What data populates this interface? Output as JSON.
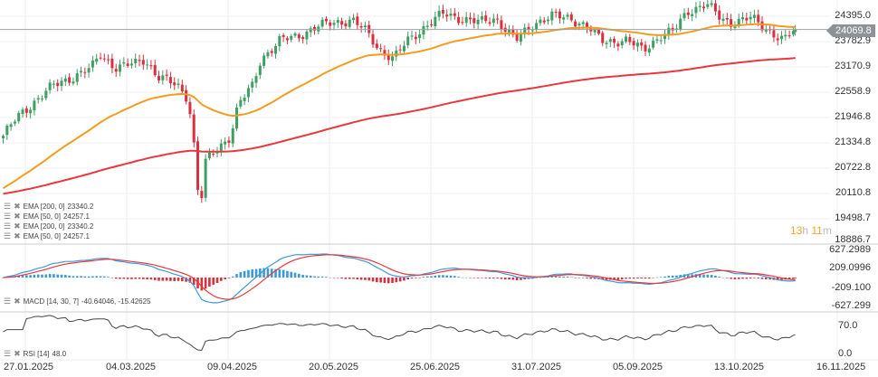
{
  "chart_data": [
    {
      "type": "candlestick",
      "pane": "price",
      "y_ticks": [
        "24395.0",
        "23782.9",
        "23170.9",
        "22558.9",
        "21946.8",
        "21334.8",
        "20722.8",
        "20110.8",
        "19498.7",
        "18886.7"
      ],
      "ylim": [
        18886.7,
        24395.0
      ],
      "current_price": "24069.8",
      "close_path": [
        [
          "2025-01-19",
          21446
        ],
        [
          "2025-01-24",
          21893
        ],
        [
          "2025-01-31",
          22340
        ],
        [
          "2025-02-06",
          22675
        ],
        [
          "2025-02-13",
          22898
        ],
        [
          "2025-02-20",
          23122
        ],
        [
          "2025-02-23",
          23457
        ],
        [
          "2025-03-01",
          23122
        ],
        [
          "2025-03-08",
          23233
        ],
        [
          "2025-03-11",
          23345
        ],
        [
          "2025-03-16",
          22898
        ],
        [
          "2025-03-23",
          22675
        ],
        [
          "2025-03-26",
          22451
        ],
        [
          "2025-03-28",
          21893
        ],
        [
          "2025-03-30",
          20329
        ],
        [
          "2025-03-31",
          19547
        ],
        [
          "2025-04-02",
          20776
        ],
        [
          "2025-04-06",
          21111
        ],
        [
          "2025-04-11",
          21446
        ],
        [
          "2025-04-14",
          22228
        ],
        [
          "2025-04-19",
          22675
        ],
        [
          "2025-04-22",
          23345
        ],
        [
          "2025-04-29",
          23792
        ],
        [
          "2025-05-05",
          23903
        ],
        [
          "2025-05-12",
          24127
        ],
        [
          "2025-05-18",
          24238
        ],
        [
          "2025-05-25",
          24306
        ],
        [
          "2025-05-30",
          24015
        ],
        [
          "2025-06-04",
          23568
        ],
        [
          "2025-06-09",
          23345
        ],
        [
          "2025-06-14",
          23792
        ],
        [
          "2025-06-20",
          24127
        ],
        [
          "2025-06-27",
          24462
        ],
        [
          "2025-07-03",
          24350
        ],
        [
          "2025-07-10",
          24238
        ],
        [
          "2025-07-16",
          24350
        ],
        [
          "2025-07-23",
          23792
        ],
        [
          "2025-07-30",
          24238
        ],
        [
          "2025-08-05",
          24395
        ],
        [
          "2025-08-12",
          24350
        ],
        [
          "2025-08-18",
          24127
        ],
        [
          "2025-08-23",
          23792
        ],
        [
          "2025-09-01",
          23792
        ],
        [
          "2025-09-07",
          23568
        ],
        [
          "2025-09-13",
          23903
        ],
        [
          "2025-09-18",
          24015
        ],
        [
          "2025-09-23",
          24529
        ],
        [
          "2025-09-30",
          24685
        ],
        [
          "2025-10-05",
          24350
        ],
        [
          "2025-10-09",
          24238
        ],
        [
          "2025-10-16",
          24350
        ],
        [
          "2025-10-23",
          24015
        ],
        [
          "2025-10-28",
          23792
        ],
        [
          "2025-10-31",
          24015
        ],
        [
          "2025-11-01",
          24069.8
        ]
      ],
      "series": [
        {
          "name": "EMA [200, 0]",
          "last": "23340.2",
          "color": "#e8383d"
        },
        {
          "name": "EMA [50, 0]",
          "last": "24257.1",
          "color": "#f39c1f"
        }
      ],
      "colors": {
        "up": "#3f9f62",
        "down": "#d9303e"
      },
      "x_ticks": [
        "27.01.2025",
        "04.03.2025",
        "09.04.2025",
        "20.05.2025",
        "25.06.2025",
        "31.07.2025",
        "05.09.2025",
        "13.10.2025",
        "16.11.2025"
      ],
      "grid": true
    },
    {
      "type": "macd",
      "pane": "macd",
      "title": "MACD [14, 30, 7]",
      "values": [
        "-40.64046",
        "-15.42625"
      ],
      "y_ticks": [
        "627.2989",
        "209.0996",
        "-209.100",
        "-627.299"
      ],
      "colors": {
        "macd": "#3d9ad9",
        "signal": "#e8383d",
        "hist_pos": "#3d9ad9",
        "hist_neg": "#d9303e"
      }
    },
    {
      "type": "line",
      "pane": "rsi",
      "title": "RSI [14]",
      "value": "48.0",
      "y_ticks": [
        "70.0",
        "0.0"
      ],
      "color": "#444444"
    }
  ],
  "legend": [
    {
      "text": "EMA [200, 0]",
      "value": "23340.2"
    },
    {
      "text": "EMA [50, 0]",
      "value": "24257.1"
    },
    {
      "text": "EMA [200, 0]",
      "value": "23340.2"
    },
    {
      "text": "EMA [50, 0]",
      "value": "24257.1"
    }
  ],
  "macd_legend": {
    "text": "MACD [14, 30, 7]",
    "value": "-40.64046,  -15.42625"
  },
  "rsi_legend": {
    "text": "RSI [14]",
    "value": "48.0"
  },
  "timer": {
    "h": "13",
    "h_unit": "h",
    "m": "11",
    "m_unit": "m"
  },
  "icons": [
    "lines-icon",
    "close-icon"
  ]
}
